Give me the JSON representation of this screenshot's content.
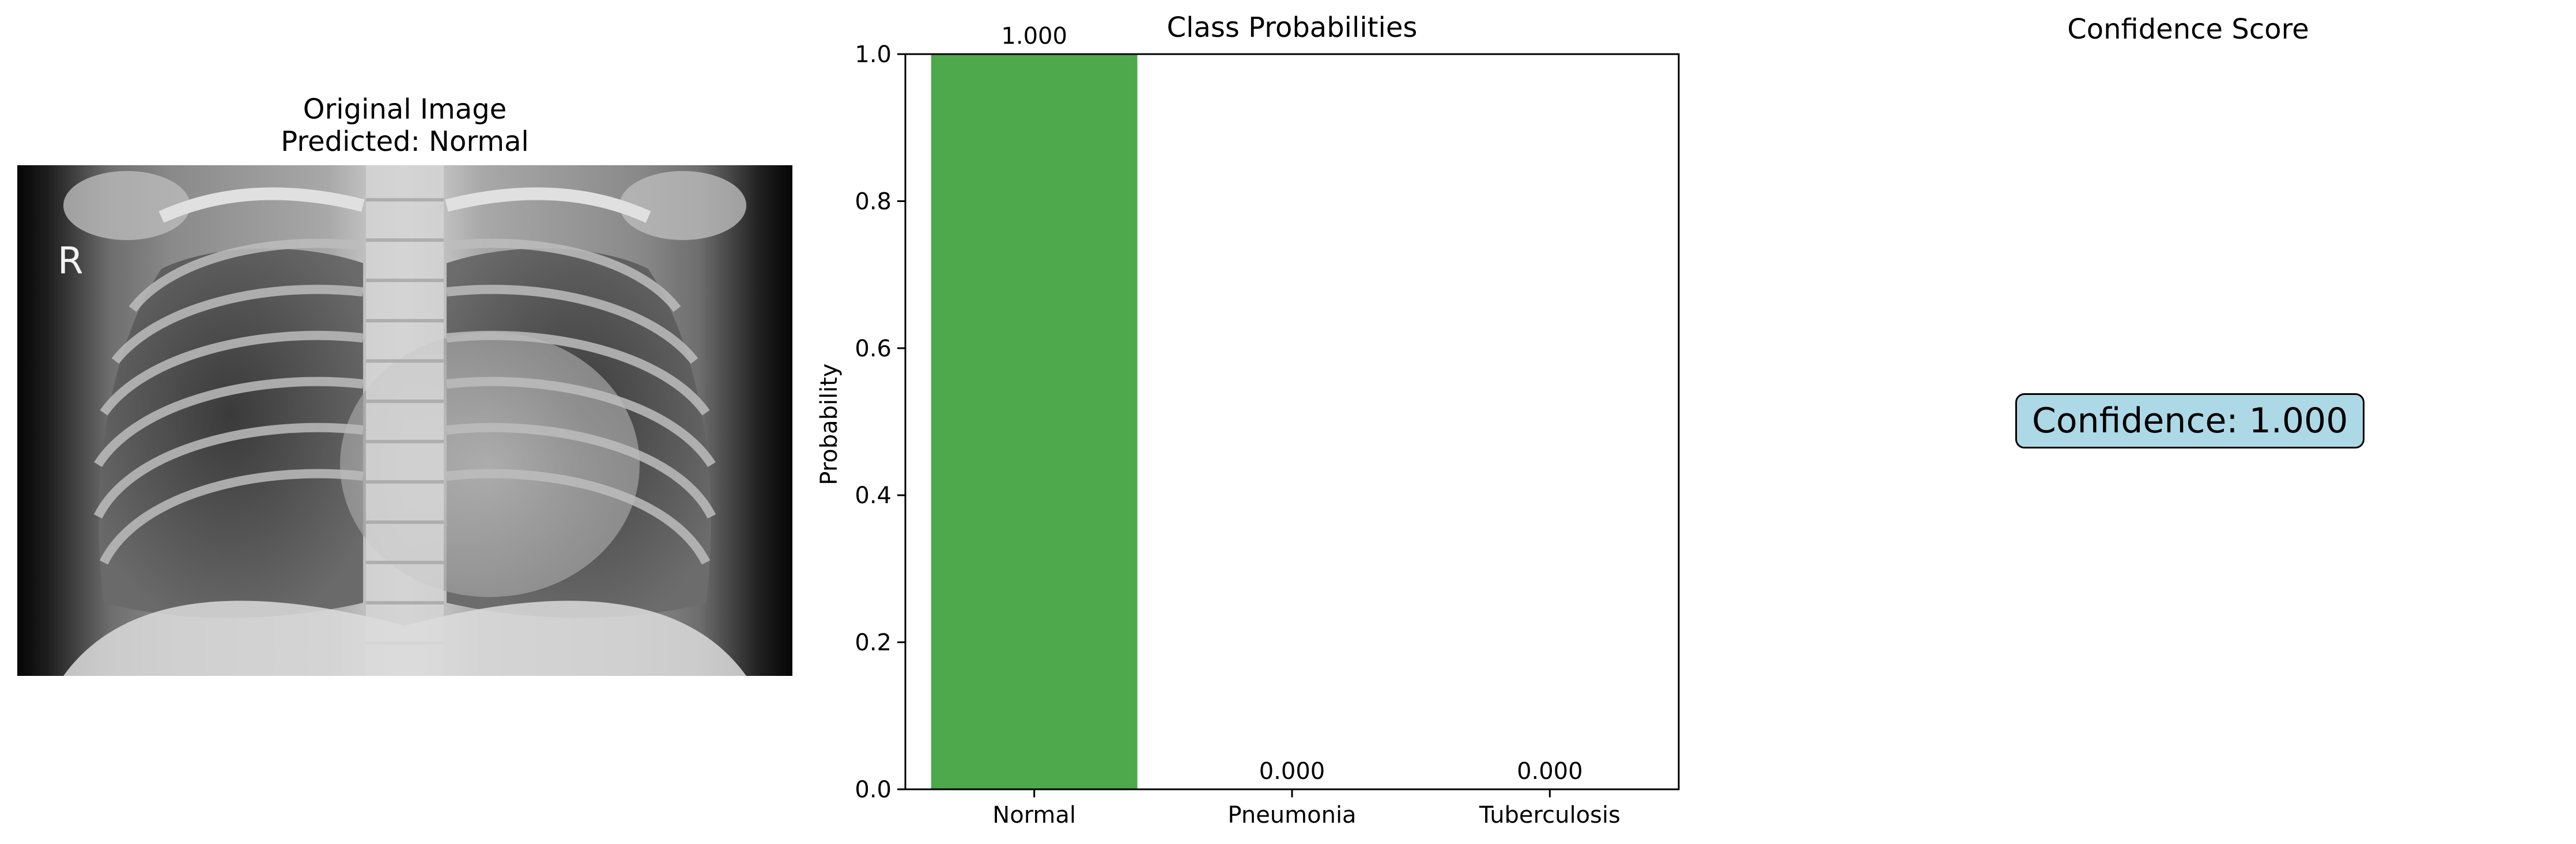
{
  "image_panel": {
    "title": "Original Image",
    "prediction": "Predicted: Normal",
    "marker": "R"
  },
  "chart_data": {
    "type": "bar",
    "title": "Class Probabilities",
    "xlabel": "",
    "ylabel": "Probability",
    "categories": [
      "Normal",
      "Pneumonia",
      "Tuberculosis"
    ],
    "values": [
      1.0,
      0.0,
      0.0
    ],
    "value_labels": [
      "1.000",
      "0.000",
      "0.000"
    ],
    "ylim": [
      0,
      1
    ],
    "yticks": [
      0.0,
      0.2,
      0.4,
      0.6,
      0.8,
      1.0
    ],
    "ytick_labels": [
      "0.0",
      "0.2",
      "0.4",
      "0.6",
      "0.8",
      "1.0"
    ],
    "bar_colors": [
      "#4ea84c",
      "#e8894a",
      "#d9534f"
    ],
    "grid": false
  },
  "confidence_panel": {
    "title": "Confidence Score",
    "label": "Confidence: 1.000",
    "box_color": "#add8e6"
  }
}
